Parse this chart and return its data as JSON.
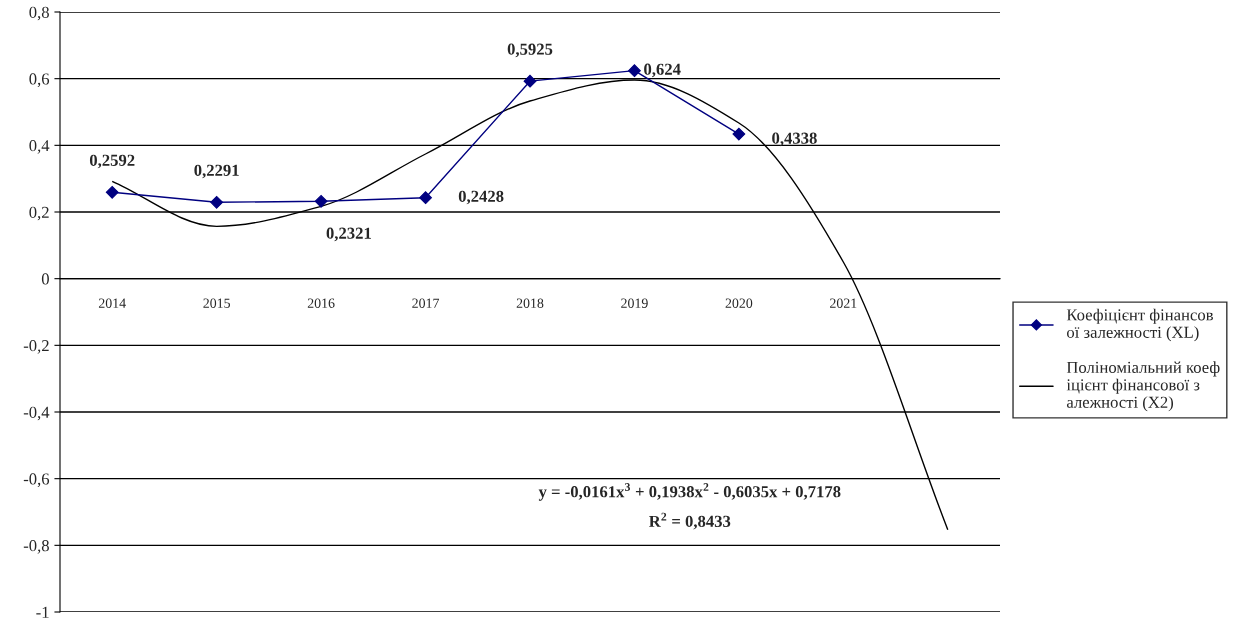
{
  "chart_data": {
    "type": "line",
    "categories": [
      "2014",
      "2015",
      "2016",
      "2017",
      "2018",
      "2019",
      "2020",
      "2021",
      null
    ],
    "series": [
      {
        "name": "Коефіцієнт фінансової залежності (XL)",
        "color": "#000080",
        "marker": "diamond",
        "values": [
          0.2592,
          0.2291,
          0.2321,
          0.2428,
          0.5925,
          0.624,
          0.4338,
          null,
          null
        ],
        "value_labels": [
          "0,2592",
          "0,2291",
          "0,2321",
          "0,2428",
          "0,5925",
          "0,624",
          "0,4338",
          null,
          null
        ]
      },
      {
        "name": "Поліноміальний коефіцієнт фінансової залежності (X2)",
        "color": "#000000",
        "marker": "none",
        "values": [
          0.292,
          0.157,
          0.217,
          0.374,
          0.533,
          0.596,
          0.467,
          0.05,
          -0.753
        ]
      }
    ],
    "ylim": [
      -1,
      0.8
    ],
    "yticks": [
      {
        "value": -1,
        "label": "-1"
      },
      {
        "value": -0.8,
        "label": "-0,8"
      },
      {
        "value": -0.6,
        "label": "-0,6"
      },
      {
        "value": -0.4,
        "label": "-0,4"
      },
      {
        "value": -0.2,
        "label": "-0,2"
      },
      {
        "value": 0,
        "label": "0"
      },
      {
        "value": 0.2,
        "label": "0,2"
      },
      {
        "value": 0.4,
        "label": "0,4"
      },
      {
        "value": 0.6,
        "label": "0,6"
      },
      {
        "value": 0.8,
        "label": "0,8"
      }
    ],
    "grid": "y",
    "legend": "right",
    "annotations": [
      "y = -0,0161x$^{3}$ + 0,1938x$^{2}$ - 0,6035x + 0,7178",
      "R$^{2}$ = 0,8433"
    ]
  }
}
